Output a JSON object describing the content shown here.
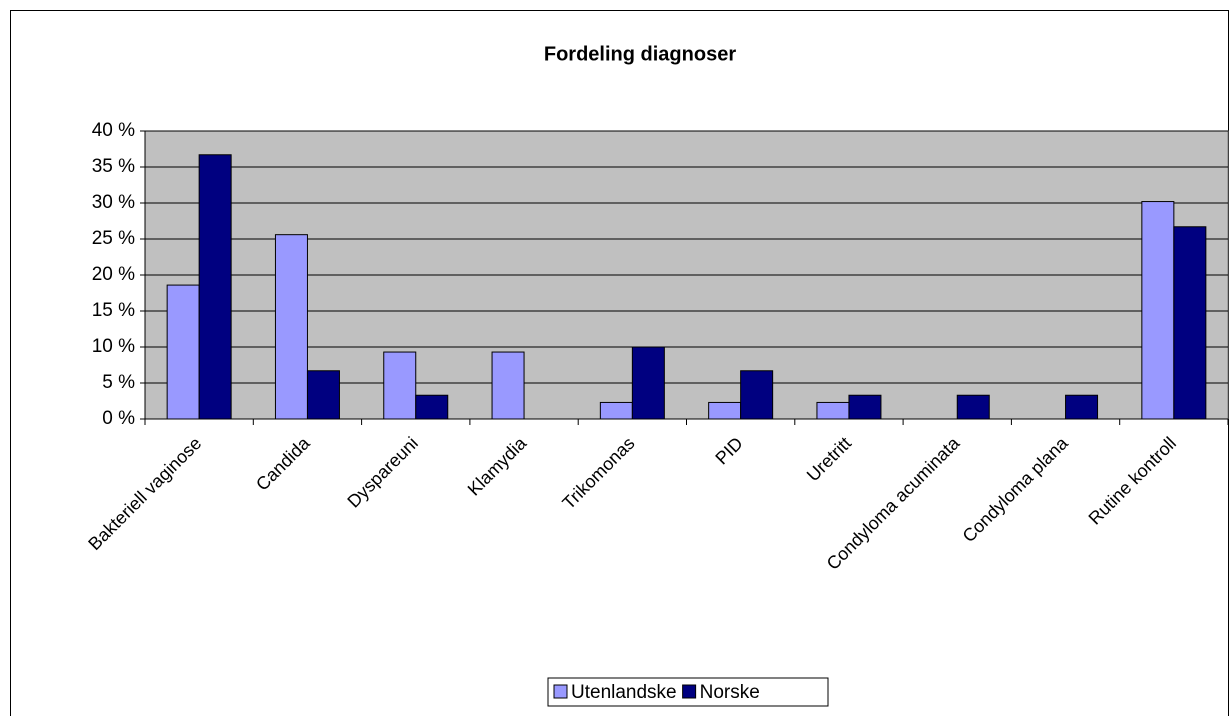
{
  "chart_data": {
    "type": "bar",
    "title": "Fordeling diagnoser",
    "categories": [
      "Bakteriell vaginose",
      "Candida",
      "Dyspareuni",
      "Klamydia",
      "Trikomonas",
      "PID",
      "Uretritt",
      "Condyloma acuminata",
      "Condyloma plana",
      "Rutine kontroll"
    ],
    "series": [
      {
        "name": "Utenlandske",
        "color": "#9999ff",
        "values": [
          18.6,
          25.6,
          9.3,
          9.3,
          2.3,
          2.3,
          2.3,
          0,
          0,
          30.2
        ]
      },
      {
        "name": "Norske",
        "color": "#000080",
        "values": [
          36.7,
          6.7,
          3.3,
          0,
          10,
          6.7,
          3.3,
          3.3,
          3.3,
          26.7
        ]
      }
    ],
    "ylim": [
      0,
      40
    ],
    "yticks": [
      {
        "value": 0,
        "label": "0 %"
      },
      {
        "value": 5,
        "label": "5 %"
      },
      {
        "value": 10,
        "label": "10 %"
      },
      {
        "value": 15,
        "label": "15 %"
      },
      {
        "value": 20,
        "label": "20 %"
      },
      {
        "value": 25,
        "label": "25 %"
      },
      {
        "value": 30,
        "label": "30 %"
      },
      {
        "value": 35,
        "label": "35 %"
      },
      {
        "value": 40,
        "label": "40 %"
      }
    ],
    "grid": true,
    "legend": "bottom"
  }
}
